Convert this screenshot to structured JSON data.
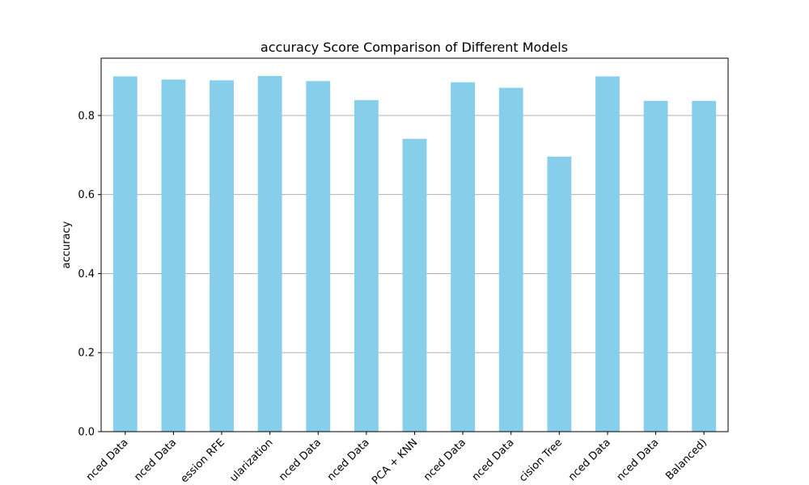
{
  "chart_data": {
    "type": "bar",
    "title": "accuracy Score Comparison of Different Models",
    "xlabel": "",
    "ylabel": "accuracy",
    "ylim": [
      0,
      0.945
    ],
    "yticks": [
      0.0,
      0.2,
      0.4,
      0.6,
      0.8
    ],
    "grid": "y",
    "bar_color": "#87CEEB",
    "grid_color": "#b0b0b0",
    "categories": [
      "nced Data",
      "nced Data",
      "ession RFE",
      "ularization",
      "nced Data",
      "nced Data",
      "PCA + KNN",
      "nced Data",
      "nced Data",
      "cision Tree",
      "nced Data",
      "nced Data",
      "Balanced)"
    ],
    "values": [
      0.899,
      0.891,
      0.889,
      0.9,
      0.887,
      0.839,
      0.741,
      0.884,
      0.87,
      0.696,
      0.899,
      0.837,
      0.837
    ]
  }
}
